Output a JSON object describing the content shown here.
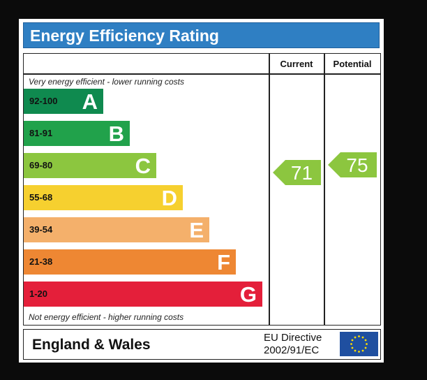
{
  "title": "Energy Efficiency Rating",
  "columns": {
    "current": "Current",
    "potential": "Potential"
  },
  "notes": {
    "top": "Very energy efficient - lower running costs",
    "bottom": "Not energy efficient - higher running costs"
  },
  "chart_data": {
    "type": "bar",
    "categories": [
      "A",
      "B",
      "C",
      "D",
      "E",
      "F",
      "G"
    ],
    "ranges": [
      "92-100",
      "81-91",
      "69-80",
      "55-68",
      "39-54",
      "21-38",
      "1-20"
    ],
    "colors": [
      "#0f8a4f",
      "#21a24b",
      "#8cc63f",
      "#f6d02f",
      "#f4b06b",
      "#ee8733",
      "#e41f3a"
    ],
    "current": 71,
    "potential": 75,
    "current_color": "#8cc63f",
    "potential_color": "#8cc63f"
  },
  "footer": {
    "region": "England & Wales",
    "directive_line1": "EU Directive",
    "directive_line2": "2002/91/EC",
    "flag_colors": {
      "field": "#1f4fa0",
      "stars": "#ffdd00"
    }
  }
}
